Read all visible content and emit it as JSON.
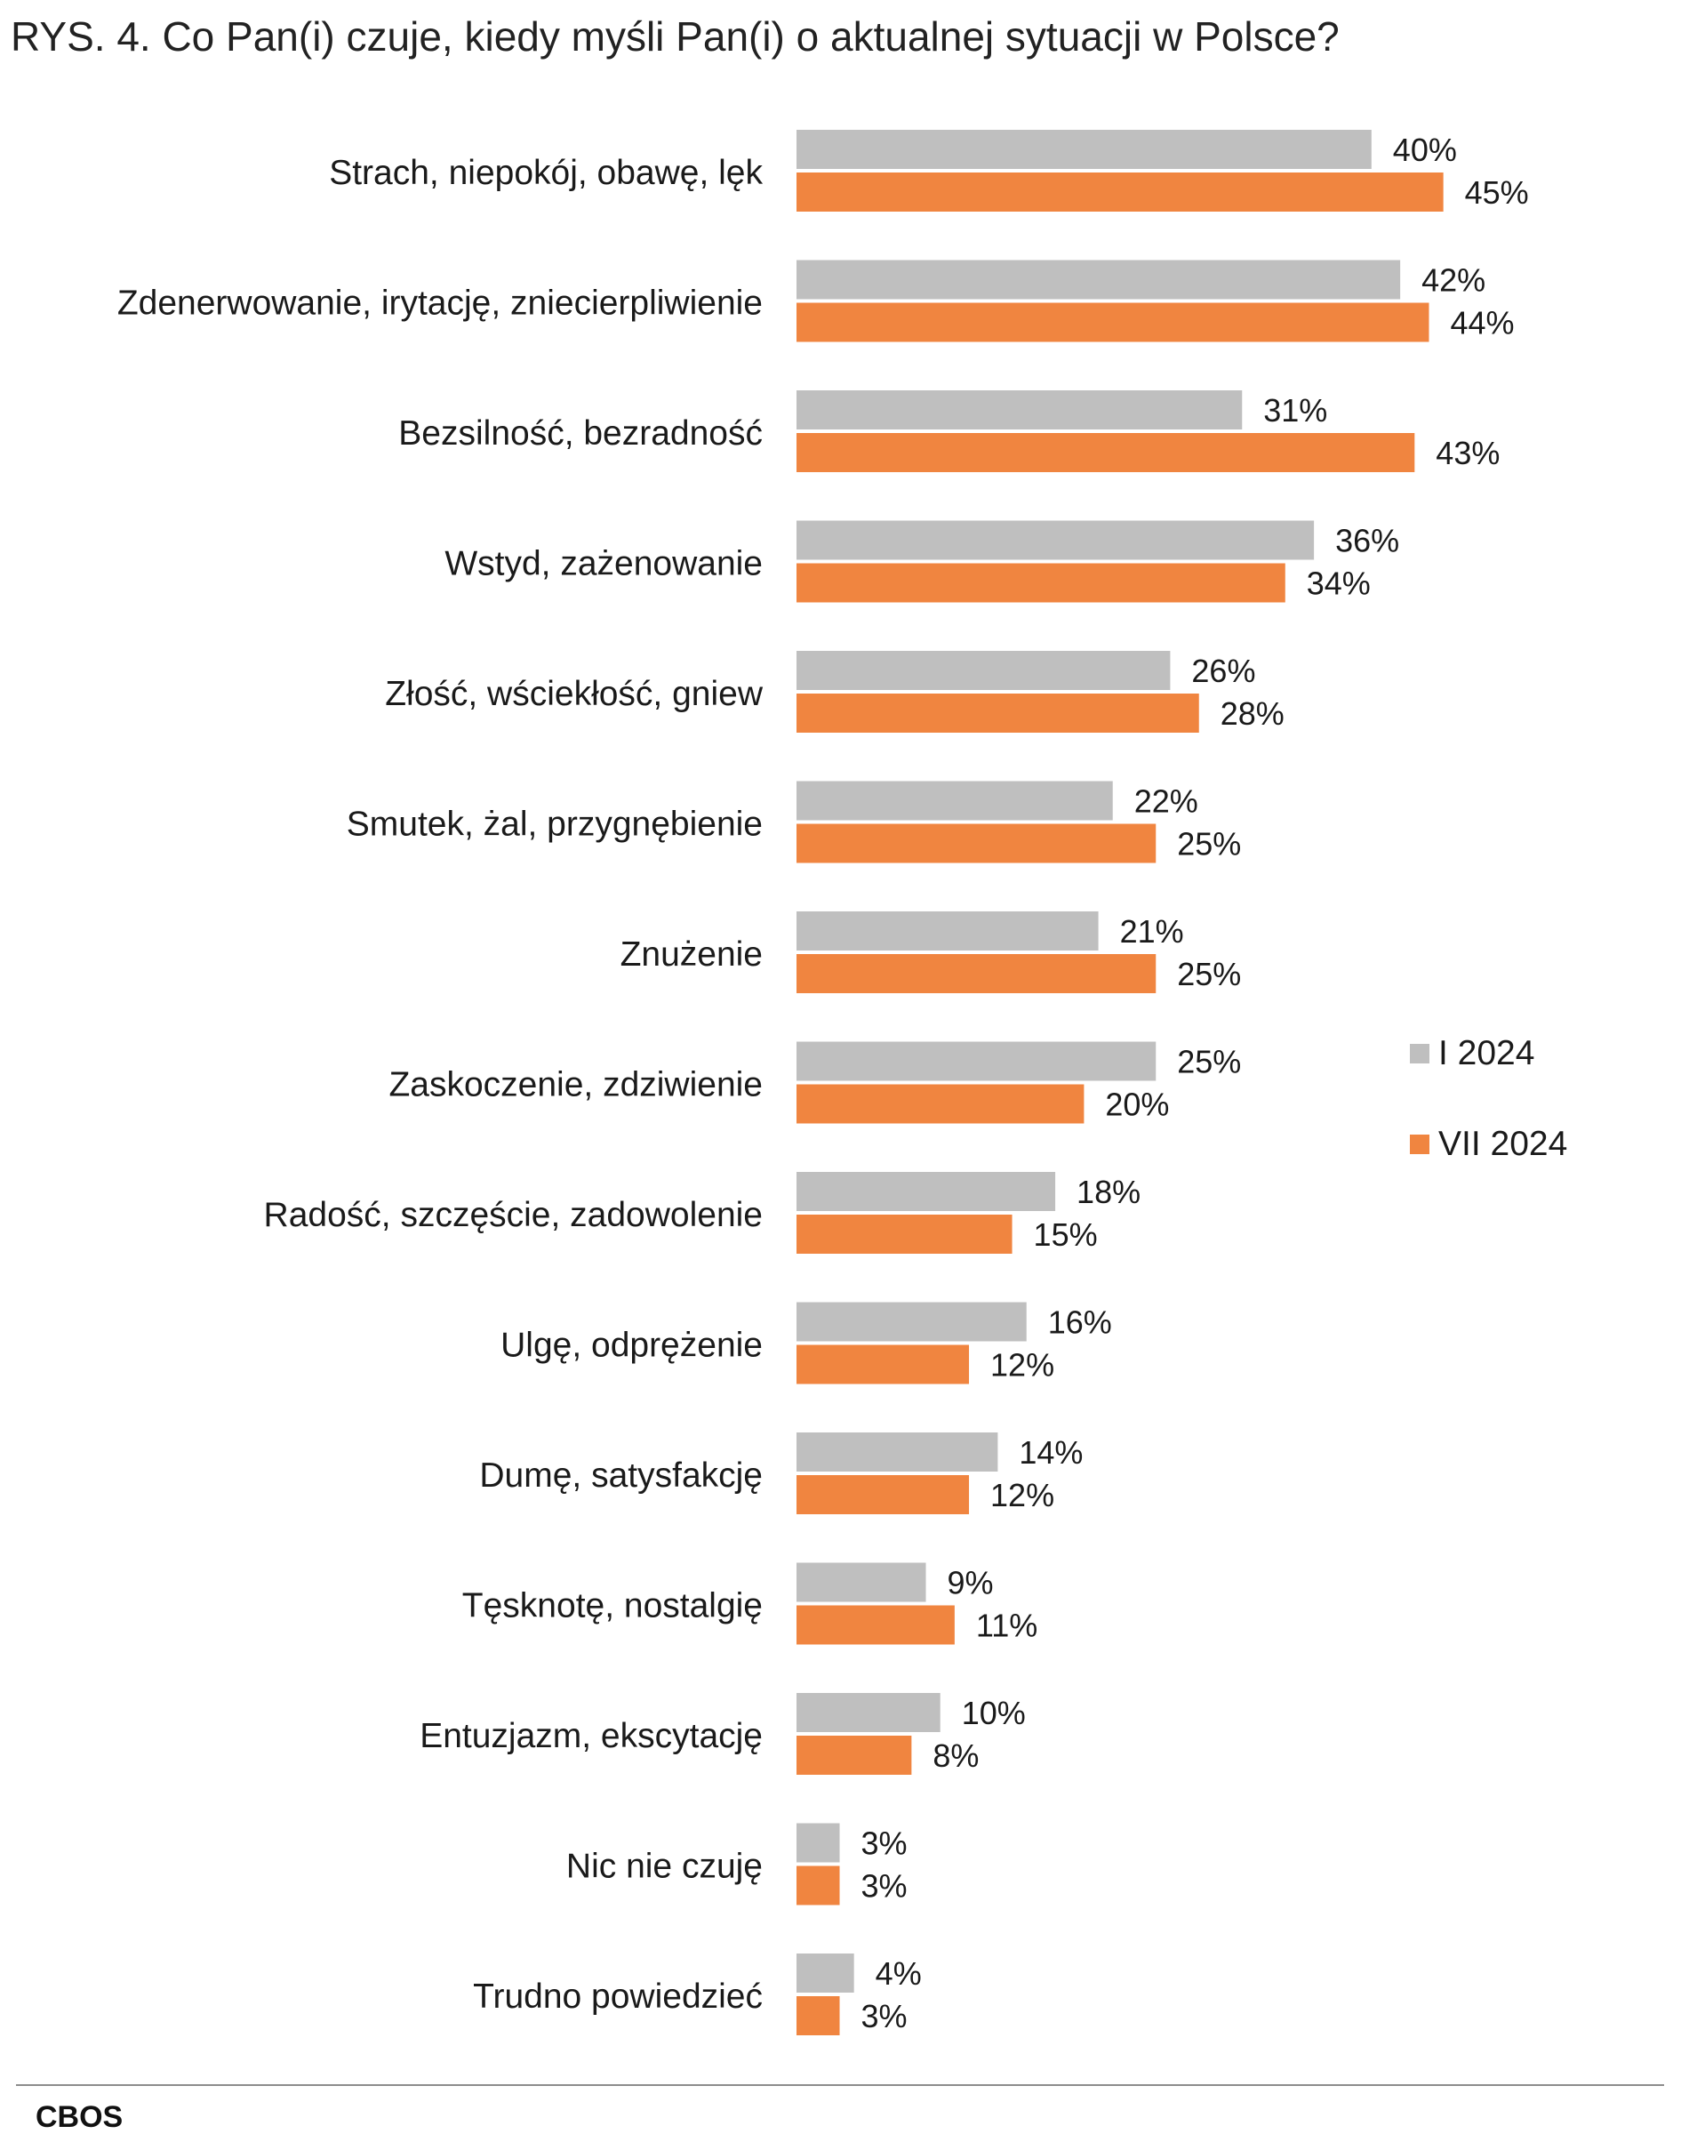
{
  "chart_data": {
    "type": "bar",
    "orientation": "horizontal",
    "title": "RYS. 4. Co Pan(i) czuje, kiedy myśli Pan(i) o aktualnej sytuacji w Polsce?",
    "categories": [
      "Strach, niepokój, obawę, lęk",
      "Zdenerwowanie, irytację, zniecierpliwienie",
      "Bezsilność, bezradność",
      "Wstyd, zażenowanie",
      "Złość, wściekłość, gniew",
      "Smutek, żal, przygnębienie",
      "Znużenie",
      "Zaskoczenie, zdziwienie",
      "Radość, szczęście, zadowolenie",
      "Ulgę, odprężenie",
      "Dumę, satysfakcję",
      "Tęsknotę, nostalgię",
      "Entuzjazm, ekscytację",
      "Nic nie czuję",
      "Trudno powiedzieć"
    ],
    "series": [
      {
        "name": "I 2024",
        "color": "#bfbfbf",
        "values": [
          40,
          42,
          31,
          36,
          26,
          22,
          21,
          25,
          18,
          16,
          14,
          9,
          10,
          3,
          4
        ]
      },
      {
        "name": "VII 2024",
        "color": "#f08540",
        "values": [
          45,
          44,
          43,
          34,
          28,
          25,
          25,
          20,
          15,
          12,
          12,
          11,
          8,
          3,
          3
        ]
      }
    ],
    "value_suffix": "%",
    "xlim": [
      0,
      50
    ],
    "grid": false,
    "legend_position": "right"
  },
  "footer": {
    "source": "CBOS"
  }
}
